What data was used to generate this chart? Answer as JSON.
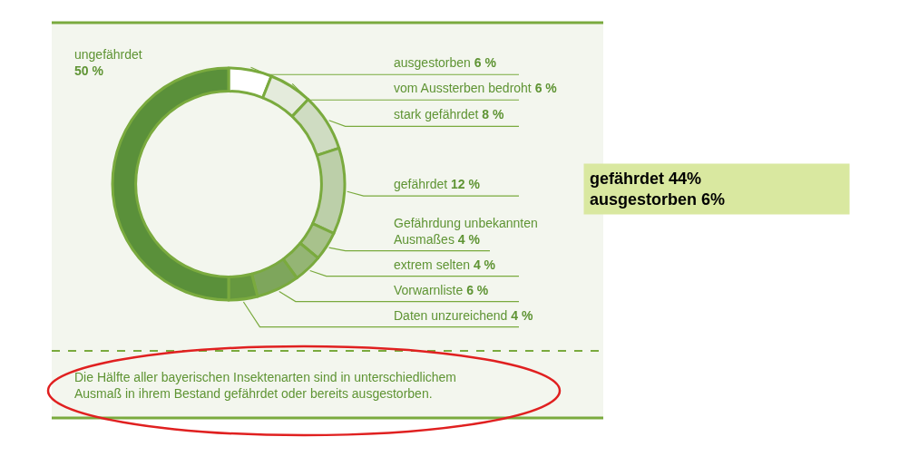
{
  "chart_data": {
    "type": "donut",
    "categories": [
      "ausgestorben",
      "vom Aussterben bedroht",
      "stark gefährdet",
      "gefährdet",
      "Gefährdung unbekannten Ausmaßes",
      "extrem selten",
      "Vorwarnliste",
      "Daten unzureichend",
      "ungefährdet"
    ],
    "values": [
      6,
      6,
      8,
      12,
      4,
      4,
      6,
      4,
      50
    ],
    "value_labels": [
      "6 %",
      "6 %",
      "8 %",
      "12 %",
      "4 %",
      "4 %",
      "6 %",
      "4 %",
      "50 %"
    ],
    "colors": [
      "#ffffff",
      "#e4ebdc",
      "#cfdcc2",
      "#bccfa9",
      "#a8c28c",
      "#94b574",
      "#7ea65c",
      "#66983f",
      "#5a903a"
    ],
    "legend": false,
    "annotations": [
      "gefährdet 44%\nausgestorben 6%",
      "Die Hälfte aller bayerischen Insektenarten sind in unterschiedlichem\nAusmaß in ihrem Bestand gefährdet oder bereits ausgestorben."
    ]
  }
}
